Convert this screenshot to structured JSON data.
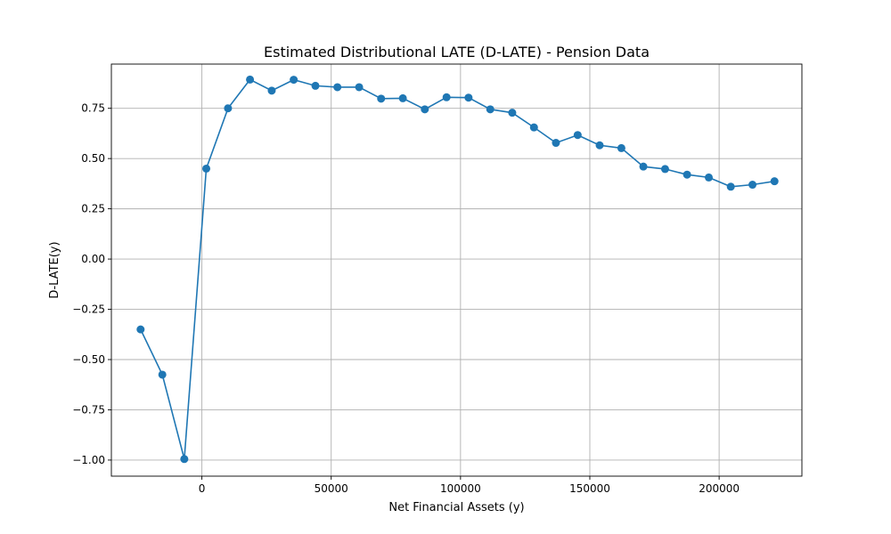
{
  "chart_data": {
    "type": "line",
    "title": "Estimated Distributional LATE (D-LATE) - Pension Data",
    "xlabel": "Net Financial Assets (y)",
    "ylabel": "D-LATE(y)",
    "xlim": [
      -35000,
      232000
    ],
    "ylim": [
      -1.08,
      0.97
    ],
    "xticks": [
      0,
      50000,
      100000,
      150000,
      200000
    ],
    "xtick_labels": [
      "0",
      "50000",
      "100000",
      "150000",
      "200000"
    ],
    "yticks": [
      -1.0,
      -0.75,
      -0.5,
      -0.25,
      0.0,
      0.25,
      0.5,
      0.75
    ],
    "ytick_labels": [
      "−1.00",
      "−0.75",
      "−0.50",
      "−0.25",
      "0.00",
      "0.25",
      "0.50",
      "0.75"
    ],
    "grid": true,
    "series": [
      {
        "color": "#1f77b4",
        "marker": "circle",
        "x": [
          -23700,
          -15300,
          -6800,
          1700,
          10100,
          18600,
          27000,
          35500,
          43900,
          52400,
          60800,
          69300,
          77700,
          86200,
          94600,
          103100,
          111500,
          120000,
          128400,
          136900,
          145300,
          153800,
          162200,
          170700,
          179100,
          187600,
          196000,
          204500,
          212900,
          221400
        ],
        "y": [
          -0.35,
          -0.575,
          -0.995,
          0.45,
          0.75,
          0.893,
          0.838,
          0.892,
          0.862,
          0.855,
          0.855,
          0.798,
          0.8,
          0.745,
          0.805,
          0.803,
          0.745,
          0.728,
          0.655,
          0.578,
          0.617,
          0.566,
          0.552,
          0.46,
          0.448,
          0.42,
          0.406,
          0.36,
          0.37,
          0.387
        ]
      }
    ]
  }
}
